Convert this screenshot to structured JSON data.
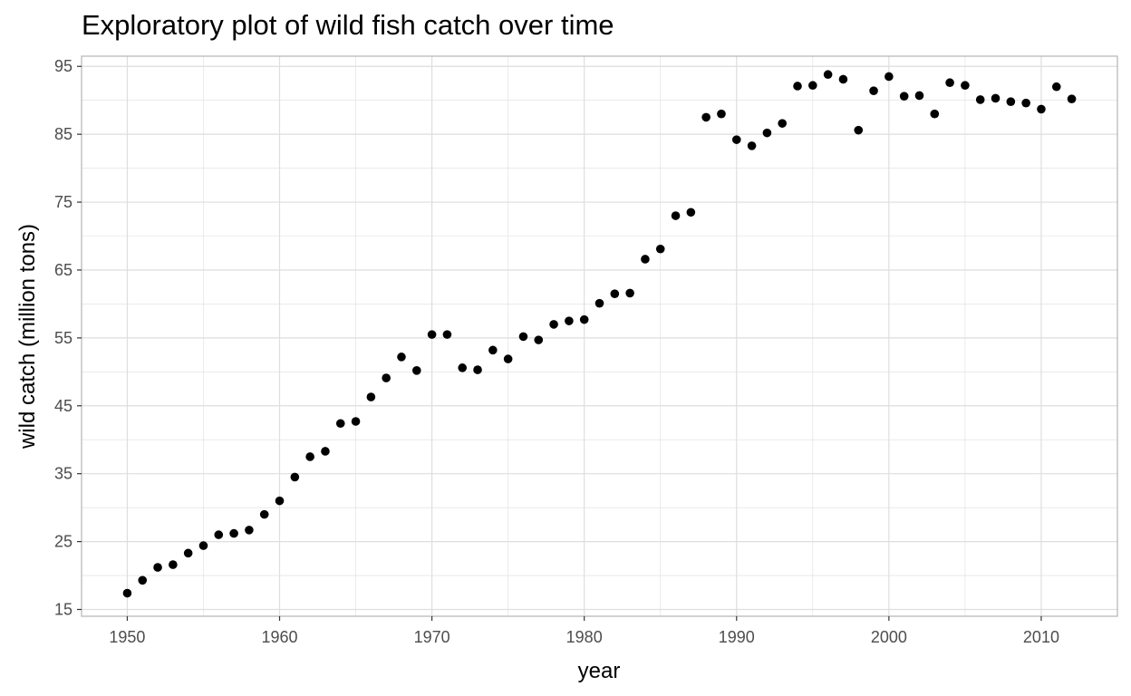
{
  "chart_data": {
    "type": "scatter",
    "title": "Exploratory plot of wild fish catch over time",
    "xlabel": "year",
    "ylabel": "wild catch (million tons)",
    "xlim": [
      1947,
      2015
    ],
    "ylim": [
      14,
      96.5
    ],
    "x_ticks": [
      1950,
      1960,
      1970,
      1980,
      1990,
      2000,
      2010
    ],
    "y_ticks": [
      15,
      25,
      35,
      45,
      55,
      65,
      75,
      85,
      95
    ],
    "grid": true,
    "legend": "none",
    "colors": {
      "point": "#000000",
      "grid": "#dedede",
      "panel_border": "#b3b3b3",
      "tick_text": "#4d4d4d"
    },
    "x": [
      1950,
      1951,
      1952,
      1953,
      1954,
      1955,
      1956,
      1957,
      1958,
      1959,
      1960,
      1961,
      1962,
      1963,
      1964,
      1965,
      1966,
      1967,
      1968,
      1969,
      1970,
      1971,
      1972,
      1973,
      1974,
      1975,
      1976,
      1977,
      1978,
      1979,
      1980,
      1981,
      1982,
      1983,
      1984,
      1985,
      1986,
      1987,
      1988,
      1989,
      1990,
      1991,
      1992,
      1993,
      1994,
      1995,
      1996,
      1997,
      1998,
      1999,
      2000,
      2001,
      2002,
      2003,
      2004,
      2005,
      2006,
      2007,
      2008,
      2009,
      2010,
      2011,
      2012
    ],
    "y": [
      17.4,
      19.3,
      21.2,
      21.6,
      23.3,
      24.4,
      26.0,
      26.2,
      26.7,
      29.0,
      31.0,
      34.5,
      37.5,
      38.3,
      42.4,
      42.7,
      46.3,
      49.1,
      52.2,
      50.2,
      55.5,
      55.5,
      50.6,
      50.3,
      53.2,
      51.9,
      55.2,
      54.7,
      57.0,
      57.5,
      57.7,
      60.1,
      61.5,
      61.6,
      66.6,
      68.1,
      73.0,
      73.5,
      87.5,
      88.0,
      84.2,
      83.3,
      85.2,
      86.6,
      92.1,
      92.2,
      93.8,
      93.1,
      85.6,
      91.4,
      93.5,
      90.6,
      90.7,
      88.0,
      92.6,
      92.2,
      90.1,
      90.3,
      89.8,
      89.6,
      88.7,
      92.0,
      90.2
    ]
  }
}
